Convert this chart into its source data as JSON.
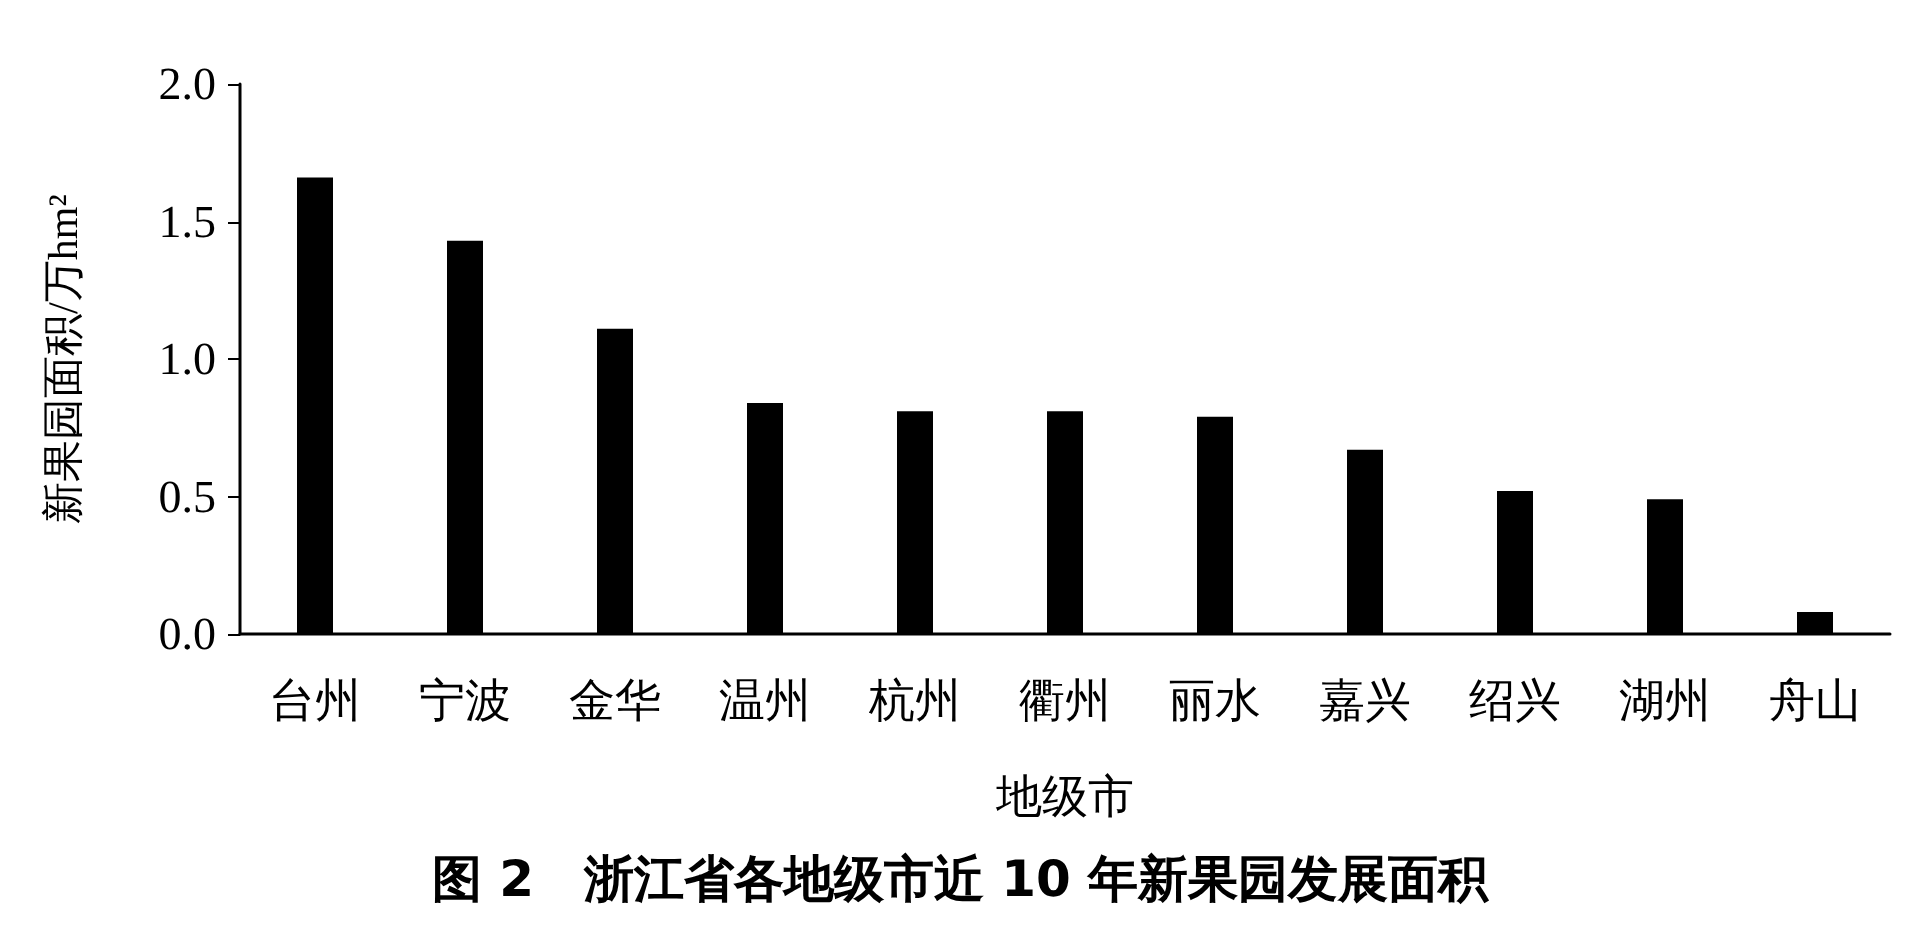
{
  "chart_data": {
    "type": "bar",
    "title": "图 2　浙江省各地级市近 10 年新果园发展面积",
    "xlabel": "地级市",
    "ylabel": "新果园面积/万hm²",
    "categories": [
      "台州",
      "宁波",
      "金华",
      "温州",
      "杭州",
      "衢州",
      "丽水",
      "嘉兴",
      "绍兴",
      "湖州",
      "舟山"
    ],
    "values": [
      1.66,
      1.43,
      1.11,
      0.84,
      0.81,
      0.81,
      0.79,
      0.67,
      0.52,
      0.49,
      0.08
    ],
    "color": "#000000",
    "ylim": [
      0,
      2
    ],
    "yticks": [
      {
        "value": 0,
        "label": "0.0"
      },
      {
        "value": 0.5,
        "label": "0.5"
      },
      {
        "value": 1,
        "label": "1.0"
      },
      {
        "value": 1.5,
        "label": "1.5"
      },
      {
        "value": 2,
        "label": "2.0"
      }
    ],
    "grid": false
  }
}
